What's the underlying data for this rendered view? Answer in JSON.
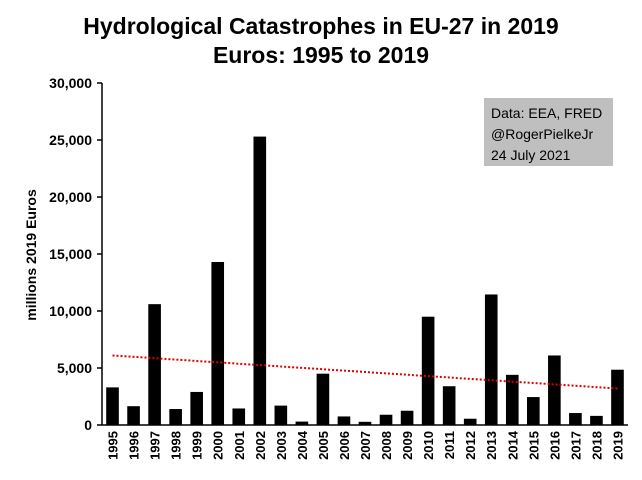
{
  "chart_data": {
    "type": "bar",
    "title": [
      "Hydrological Catastrophes in EU-27 in 2019",
      "Euros: 1995 to 2019"
    ],
    "ylabel": "millions 2019 Euros",
    "xlabel": "",
    "ylim": [
      0,
      30000
    ],
    "yticks": [
      0,
      5000,
      10000,
      15000,
      20000,
      25000,
      30000
    ],
    "ytick_labels": [
      "0",
      "5,000",
      "10,000",
      "15,000",
      "20,000",
      "25,000",
      "30,000"
    ],
    "grid": false,
    "legend": "none",
    "categories": [
      "1995",
      "1996",
      "1997",
      "1998",
      "1999",
      "2000",
      "2001",
      "2002",
      "2003",
      "2004",
      "2005",
      "2006",
      "2007",
      "2008",
      "2009",
      "2010",
      "2011",
      "2012",
      "2013",
      "2014",
      "2015",
      "2016",
      "2017",
      "2018",
      "2019"
    ],
    "values": [
      3300,
      1650,
      10600,
      1400,
      2900,
      14300,
      1450,
      25300,
      1700,
      300,
      4500,
      750,
      280,
      900,
      1250,
      9500,
      3400,
      550,
      11450,
      4400,
      2450,
      6100,
      1050,
      800,
      4850
    ],
    "trendline": {
      "style": "dotted",
      "color": "#e00000",
      "start": 6100,
      "end": 3200
    },
    "bar_color": "#000000",
    "annotation": {
      "line1": "Data: EEA, FRED",
      "line2": "@RogerPielkeJr",
      "line3": "24 July 2021",
      "box_color": "#bfbfbf",
      "link_color": "#00b0f0",
      "placement": "top-right"
    }
  }
}
